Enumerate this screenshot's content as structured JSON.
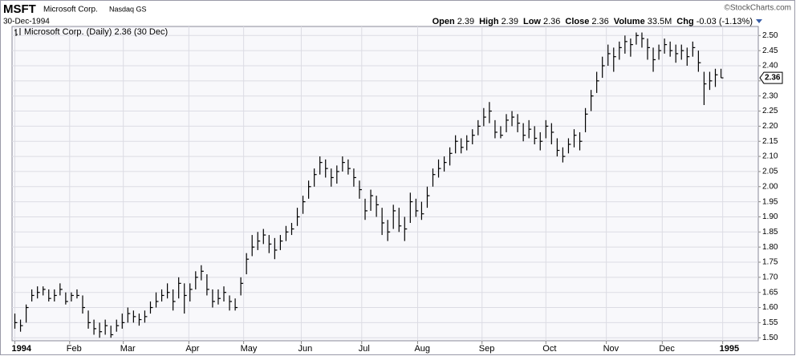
{
  "header": {
    "ticker": "MSFT",
    "name": "Microsoft Corp.",
    "exchange": "Nasdaq GS",
    "date": "30-Dec-1994",
    "copyright": "©StockCharts.com",
    "quote": [
      {
        "label": "Open",
        "value": "2.39"
      },
      {
        "label": "High",
        "value": "2.39"
      },
      {
        "label": "Low",
        "value": "2.36"
      },
      {
        "label": "Close",
        "value": "2.36"
      },
      {
        "label": "Volume",
        "value": "33.5M"
      },
      {
        "label": "Chg",
        "value": "-0.03 (-1.13%)"
      }
    ]
  },
  "chart_data": {
    "type": "ohlc",
    "legend": "Microsoft Corp. (Daily) 2.36 (30 Dec)",
    "last_label": "2.36",
    "color": "#000000",
    "grid": true,
    "xlim": [
      -0.5,
      131.6
    ],
    "ylim": [
      1.49,
      2.53
    ],
    "xticks": [
      {
        "value": 0,
        "label": "1994"
      },
      {
        "value": 9.7,
        "label": "Feb"
      },
      {
        "value": 19.2,
        "label": "Mar"
      },
      {
        "value": 30.8,
        "label": "Apr"
      },
      {
        "value": 40.5,
        "label": "May"
      },
      {
        "value": 50.7,
        "label": "Jun"
      },
      {
        "value": 61.4,
        "label": "Jul"
      },
      {
        "value": 71.3,
        "label": "Aug"
      },
      {
        "value": 82.7,
        "label": "Sep"
      },
      {
        "value": 94,
        "label": "Oct"
      },
      {
        "value": 104.7,
        "label": "Nov"
      },
      {
        "value": 114.6,
        "label": "Dec"
      },
      {
        "value": 125.3,
        "label": "1995"
      }
    ],
    "yticks": [
      {
        "value": 1.5,
        "label": "1.50"
      },
      1.55,
      {
        "value": 1.6,
        "label": "1.60"
      },
      1.65,
      {
        "value": 1.7,
        "label": "1.70"
      },
      1.75,
      {
        "value": 1.8,
        "label": "1.80"
      },
      1.85,
      {
        "value": 1.9,
        "label": "1.90"
      },
      1.95,
      {
        "value": 2,
        "label": "2.00"
      },
      2.05,
      {
        "value": 2.1,
        "label": "2.10"
      },
      2.15,
      {
        "value": 2.2,
        "label": "2.20"
      },
      2.25,
      {
        "value": 2.3,
        "label": "2.30"
      },
      2.35,
      {
        "value": 2.4,
        "label": "2.40"
      },
      2.45,
      {
        "value": 2.5,
        "label": "2.50"
      }
    ],
    "high": [
      1.58,
      1.56,
      1.61,
      1.66,
      1.67,
      1.67,
      1.66,
      1.66,
      1.68,
      1.65,
      1.65,
      1.66,
      1.64,
      1.59,
      1.56,
      1.55,
      1.56,
      1.54,
      1.56,
      1.58,
      1.6,
      1.59,
      1.58,
      1.59,
      1.62,
      1.65,
      1.66,
      1.68,
      1.66,
      1.7,
      1.68,
      1.68,
      1.72,
      1.74,
      1.71,
      1.66,
      1.66,
      1.67,
      1.64,
      1.63,
      1.7,
      1.78,
      1.84,
      1.85,
      1.86,
      1.84,
      1.83,
      1.84,
      1.87,
      1.88,
      1.93,
      1.97,
      2.02,
      2.06,
      2.1,
      2.09,
      2.06,
      2.07,
      2.1,
      2.09,
      2.06,
      2.02,
      1.96,
      1.99,
      1.97,
      1.93,
      1.89,
      1.94,
      1.93,
      1.9,
      1.98,
      1.96,
      1.95,
      2.0,
      2.06,
      2.09,
      2.1,
      2.13,
      2.17,
      2.16,
      2.17,
      2.19,
      2.22,
      2.26,
      2.28,
      2.22,
      2.2,
      2.24,
      2.25,
      2.24,
      2.21,
      2.22,
      2.2,
      2.18,
      2.22,
      2.21,
      2.16,
      2.13,
      2.16,
      2.19,
      2.18,
      2.26,
      2.32,
      2.38,
      2.43,
      2.47,
      2.46,
      2.48,
      2.5,
      2.49,
      2.51,
      2.51,
      2.49,
      2.46,
      2.47,
      2.49,
      2.48,
      2.47,
      2.47,
      2.46,
      2.48,
      2.45,
      2.38,
      2.38,
      2.39,
      2.39
    ],
    "low": [
      1.53,
      1.52,
      1.55,
      1.62,
      1.63,
      1.64,
      1.62,
      1.62,
      1.64,
      1.61,
      1.62,
      1.63,
      1.58,
      1.53,
      1.51,
      1.5,
      1.51,
      1.5,
      1.52,
      1.53,
      1.55,
      1.55,
      1.54,
      1.55,
      1.58,
      1.6,
      1.62,
      1.63,
      1.59,
      1.63,
      1.58,
      1.62,
      1.66,
      1.69,
      1.64,
      1.6,
      1.61,
      1.62,
      1.59,
      1.59,
      1.64,
      1.71,
      1.77,
      1.79,
      1.81,
      1.78,
      1.76,
      1.79,
      1.82,
      1.84,
      1.87,
      1.91,
      1.96,
      2.0,
      2.04,
      2.03,
      2.0,
      2.01,
      2.05,
      2.04,
      2.0,
      1.96,
      1.89,
      1.92,
      1.9,
      1.84,
      1.82,
      1.86,
      1.85,
      1.82,
      1.88,
      1.9,
      1.89,
      1.93,
      2.0,
      2.03,
      2.05,
      2.07,
      2.11,
      2.11,
      2.12,
      2.14,
      2.17,
      2.2,
      2.21,
      2.16,
      2.16,
      2.18,
      2.2,
      2.18,
      2.15,
      2.16,
      2.14,
      2.12,
      2.16,
      2.14,
      2.1,
      2.08,
      2.11,
      2.13,
      2.12,
      2.18,
      2.25,
      2.31,
      2.36,
      2.4,
      2.38,
      2.42,
      2.44,
      2.43,
      2.47,
      2.46,
      2.42,
      2.38,
      2.42,
      2.44,
      2.43,
      2.41,
      2.42,
      2.4,
      2.43,
      2.38,
      2.27,
      2.32,
      2.33,
      2.36
    ],
    "close": [
      1.55,
      1.54,
      1.6,
      1.64,
      1.65,
      1.66,
      1.63,
      1.64,
      1.66,
      1.62,
      1.64,
      1.64,
      1.6,
      1.55,
      1.53,
      1.52,
      1.54,
      1.51,
      1.54,
      1.55,
      1.58,
      1.57,
      1.56,
      1.57,
      1.6,
      1.62,
      1.64,
      1.65,
      1.62,
      1.68,
      1.64,
      1.66,
      1.7,
      1.72,
      1.66,
      1.62,
      1.63,
      1.65,
      1.62,
      1.6,
      1.68,
      1.76,
      1.8,
      1.82,
      1.84,
      1.81,
      1.79,
      1.82,
      1.85,
      1.86,
      1.9,
      1.95,
      2.0,
      2.04,
      2.08,
      2.06,
      2.03,
      2.05,
      2.08,
      2.06,
      2.03,
      1.99,
      1.92,
      1.97,
      1.94,
      1.88,
      1.85,
      1.92,
      1.87,
      1.86,
      1.95,
      1.92,
      1.91,
      1.97,
      2.04,
      2.06,
      2.08,
      2.11,
      2.15,
      2.13,
      2.15,
      2.17,
      2.2,
      2.23,
      2.25,
      2.18,
      2.17,
      2.22,
      2.23,
      2.21,
      2.17,
      2.19,
      2.16,
      2.15,
      2.2,
      2.18,
      2.12,
      2.1,
      2.14,
      2.17,
      2.15,
      2.24,
      2.3,
      2.35,
      2.4,
      2.44,
      2.43,
      2.46,
      2.48,
      2.47,
      2.5,
      2.49,
      2.46,
      2.42,
      2.45,
      2.47,
      2.45,
      2.44,
      2.45,
      2.43,
      2.46,
      2.41,
      2.34,
      2.35,
      2.37,
      2.36
    ]
  }
}
